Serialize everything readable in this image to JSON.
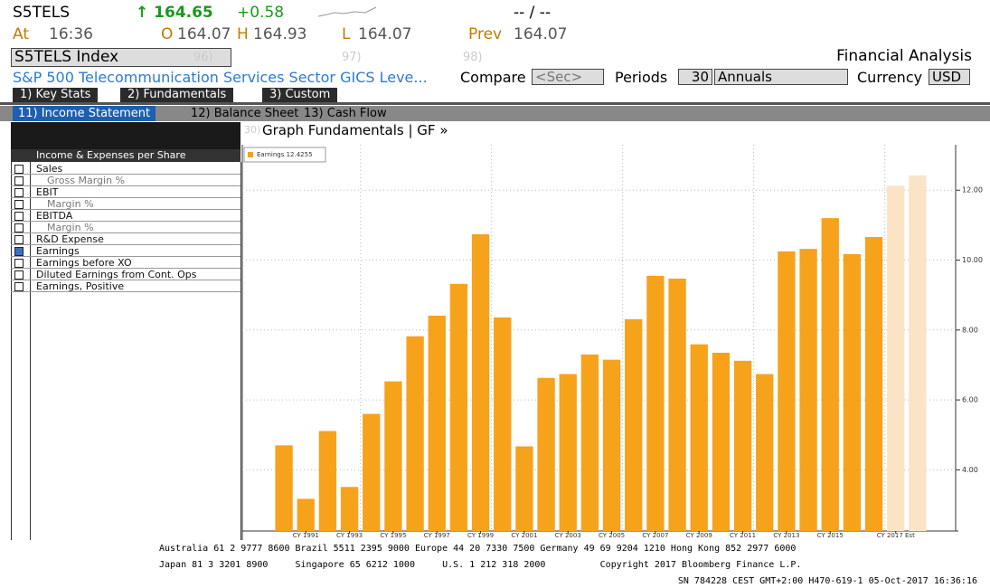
{
  "header": {
    "ticker": "S5TELS",
    "price": "↑ 164.65",
    "change": "+0.58",
    "bid_ask": "-- / --",
    "quote": [
      [
        "At",
        "16:36"
      ],
      [
        "O",
        "164.07"
      ],
      [
        "H",
        "164.93"
      ],
      [
        "L",
        "164.07"
      ],
      [
        "Prev",
        "164.07"
      ]
    ],
    "security": "S5TELS Index",
    "fn96": "96)",
    "fn97": "97)",
    "fn98": "98)",
    "function_title": "Financial Analysis",
    "description": "S&P 500 Telecommunication Services Sector GICS Leve...",
    "compare_label": "Compare",
    "compare_value": "<Sec>",
    "periods_label": "Periods",
    "periods_value": "30",
    "periods_type": "Annuals",
    "currency_label": "Currency",
    "currency_value": "USD"
  },
  "tabs": [
    "1) Key Stats",
    "2) Fundamentals",
    "3) Custom"
  ],
  "subtabs": [
    "11) Income Statement",
    "12) Balance Sheet",
    "13) Cash Flow"
  ],
  "graph_header": {
    "number": "30)",
    "title": "Graph Fundamentals | GF »"
  },
  "panel": {
    "title": "Income & Expenses per Share",
    "items": [
      {
        "label": "Sales",
        "checked": false,
        "indent": false
      },
      {
        "label": "Gross Margin %",
        "checked": false,
        "indent": true
      },
      {
        "label": "EBIT",
        "checked": false,
        "indent": false
      },
      {
        "label": "Margin %",
        "checked": false,
        "indent": true
      },
      {
        "label": "EBITDA",
        "checked": false,
        "indent": false
      },
      {
        "label": "Margin %",
        "checked": false,
        "indent": true
      },
      {
        "label": "R&D Expense",
        "checked": false,
        "indent": false
      },
      {
        "label": "Earnings",
        "checked": true,
        "indent": false
      },
      {
        "label": "Earnings before XO",
        "checked": false,
        "indent": false
      },
      {
        "label": "Diluted Earnings from Cont. Ops",
        "checked": false,
        "indent": false
      },
      {
        "label": "Earnings, Positive",
        "checked": false,
        "indent": false
      }
    ]
  },
  "chart_data": {
    "type": "bar",
    "legend": "Earnings 12.4255",
    "legend_color": "#f7a21b",
    "categories": [
      null,
      "CY 1991",
      null,
      "CY 1993",
      null,
      "CY 1995",
      null,
      "CY 1997",
      null,
      "CY 1999",
      null,
      "CY 2001",
      null,
      "CY 2003",
      null,
      "CY 2005",
      null,
      "CY 2007",
      null,
      "CY 2009",
      null,
      "CY 2011",
      null,
      "CY 2013",
      null,
      "CY 2015",
      null,
      null,
      "CY 2017 Est",
      null
    ],
    "values": [
      4.7,
      3.17,
      5.11,
      3.51,
      5.6,
      6.53,
      7.82,
      8.41,
      9.32,
      10.74,
      8.36,
      4.67,
      6.63,
      6.74,
      7.3,
      7.15,
      8.31,
      9.55,
      9.47,
      7.59,
      7.35,
      7.12,
      6.74,
      10.25,
      10.32,
      11.2,
      10.17,
      10.66,
      12.13,
      12.4255
    ],
    "colors": [
      "#f7a21b",
      "#f7a21b",
      "#f7a21b",
      "#f7a21b",
      "#f7a21b",
      "#f7a21b",
      "#f7a21b",
      "#f7a21b",
      "#f7a21b",
      "#f7a21b",
      "#f7a21b",
      "#f7a21b",
      "#f7a21b",
      "#f7a21b",
      "#f7a21b",
      "#f7a21b",
      "#f7a21b",
      "#f7a21b",
      "#f7a21b",
      "#f7a21b",
      "#f7a21b",
      "#f7a21b",
      "#f7a21b",
      "#f7a21b",
      "#f7a21b",
      "#f7a21b",
      "#f7a21b",
      "#f7a21b",
      "#fbe4c6",
      "#fbe4c6"
    ],
    "ylim": [
      2.25,
      13.3
    ],
    "yticks": [
      {
        "value": 4,
        "label": "4.00"
      },
      {
        "value": 6,
        "label": "6.00"
      },
      {
        "value": 8,
        "label": "8.00"
      },
      {
        "value": 10,
        "label": "10.00"
      },
      {
        "value": 12,
        "label": "12.00"
      }
    ],
    "grid": true
  },
  "footer": [
    "Australia 61 2 9777 8600 Brazil 5511 2395 9000 Europe 44 20 7330 7500 Germany 49 69 9204 1210 Hong Kong 852 2977 6000",
    "Japan 81 3 3201 8900     Singapore 65 6212 1000     U.S. 1 212 318 2000          Copyright 2017 Bloomberg Finance L.P.",
    "SN 784228 CEST GMT+2:00 H470-619-1 05-Oct-2017 16:36:16"
  ]
}
